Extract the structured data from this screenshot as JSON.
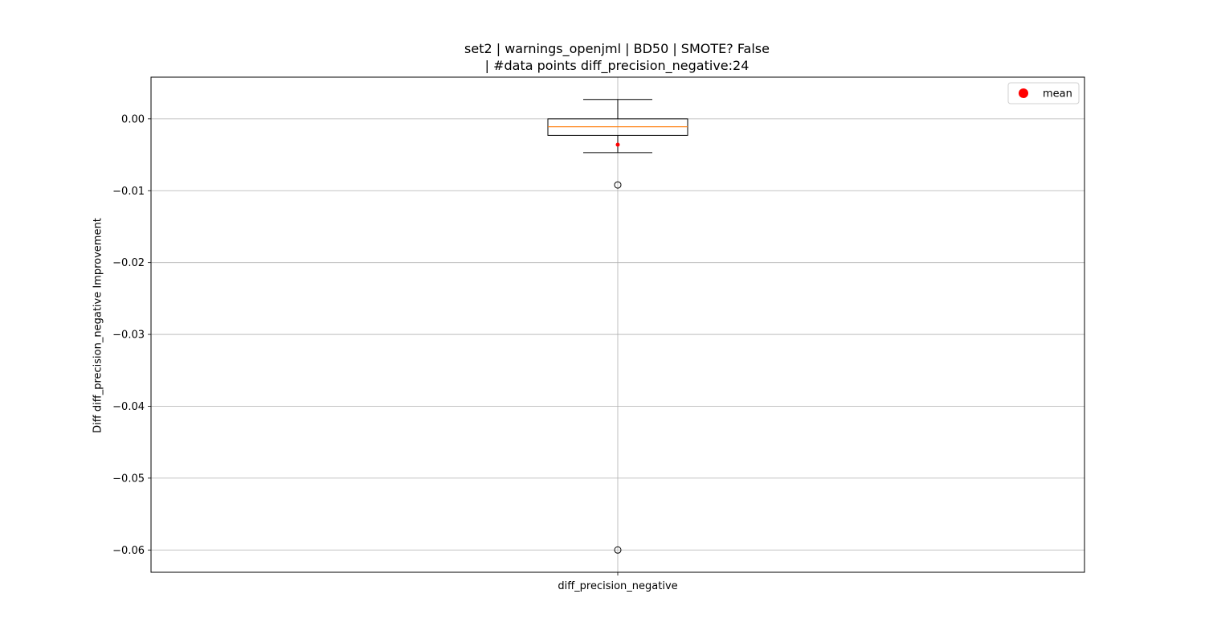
{
  "chart_data": {
    "type": "box",
    "title_lines": [
      "set2 | warnings_openjml | BD50 | SMOTE? False",
      "| #data points diff_precision_negative:24"
    ],
    "xlabel": "",
    "ylabel": "Diff diff_precision_negative Improvement",
    "categories": [
      "diff_precision_negative"
    ],
    "ylim": [
      -0.0631,
      0.0058
    ],
    "yticks": [
      0.0,
      -0.01,
      -0.02,
      -0.03,
      -0.04,
      -0.05,
      -0.06
    ],
    "ytick_labels": [
      "0.00",
      "−0.01",
      "−0.02",
      "−0.03",
      "−0.04",
      "−0.05",
      "−0.06"
    ],
    "grid": true,
    "box": {
      "whisker_high": 0.0027,
      "q3": 0.0,
      "median": -0.0011,
      "q1": -0.0023,
      "whisker_low": -0.0047,
      "mean": -0.0036,
      "outliers": [
        -0.0092,
        -0.06
      ]
    },
    "legend": {
      "position": "top-right",
      "entries": [
        {
          "label": "mean",
          "color": "#ff0000",
          "marker": "circle"
        }
      ]
    },
    "colors": {
      "median": "#ff7f0e",
      "mean": "#ff0000",
      "box": "#000000",
      "grid": "#b0b0b0"
    }
  }
}
